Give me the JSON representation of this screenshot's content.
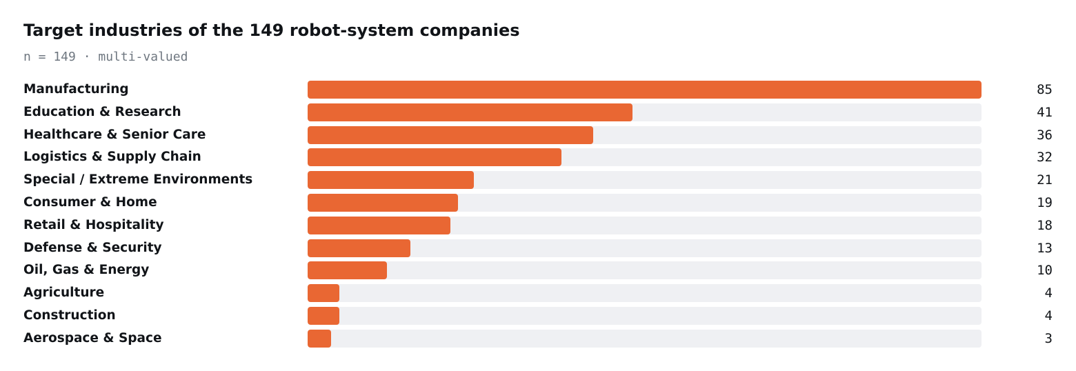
{
  "chart_data": {
    "type": "bar",
    "orientation": "horizontal",
    "title": "Target industries of the 149 robot-system companies",
    "subtitle": "n = 149 · multi-valued",
    "categories": [
      "Manufacturing",
      "Education & Research",
      "Healthcare & Senior Care",
      "Logistics & Supply Chain",
      "Special / Extreme Environments",
      "Consumer & Home",
      "Retail & Hospitality",
      "Defense & Security",
      "Oil, Gas & Energy",
      "Agriculture",
      "Construction",
      "Aerospace & Space"
    ],
    "values": [
      85,
      41,
      36,
      32,
      21,
      19,
      18,
      13,
      10,
      4,
      4,
      3
    ],
    "xlim": [
      0,
      85
    ],
    "grid": false,
    "legend": "none",
    "colors": {
      "bar": "#e96733",
      "track": "#eff0f3",
      "text": "#111418",
      "subtitle": "#6f7780"
    }
  }
}
